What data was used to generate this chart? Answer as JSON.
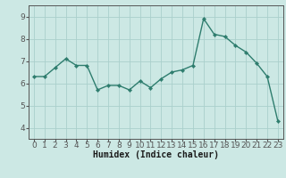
{
  "x": [
    0,
    1,
    2,
    3,
    4,
    5,
    6,
    7,
    8,
    9,
    10,
    11,
    12,
    13,
    14,
    15,
    16,
    17,
    18,
    19,
    20,
    21,
    22,
    23
  ],
  "y": [
    6.3,
    6.3,
    6.7,
    7.1,
    6.8,
    6.8,
    5.7,
    5.9,
    5.9,
    5.7,
    6.1,
    5.8,
    6.2,
    6.5,
    6.6,
    6.8,
    8.9,
    8.2,
    8.1,
    7.7,
    7.4,
    6.9,
    6.3,
    4.3
  ],
  "line_color": "#2e7d6e",
  "marker": "D",
  "marker_size": 2.2,
  "line_width": 1.0,
  "xlabel": "Humidex (Indice chaleur)",
  "xlim": [
    -0.5,
    23.5
  ],
  "ylim": [
    3.5,
    9.5
  ],
  "yticks": [
    4,
    5,
    6,
    7,
    8,
    9
  ],
  "xtick_labels": [
    "0",
    "1",
    "2",
    "3",
    "4",
    "5",
    "6",
    "7",
    "8",
    "9",
    "10",
    "11",
    "12",
    "13",
    "14",
    "15",
    "16",
    "17",
    "18",
    "19",
    "20",
    "21",
    "22",
    "23"
  ],
  "bg_color": "#cce8e4",
  "grid_color": "#aacfcc",
  "axis_color": "#555555",
  "xlabel_fontsize": 7,
  "tick_fontsize": 6.5
}
